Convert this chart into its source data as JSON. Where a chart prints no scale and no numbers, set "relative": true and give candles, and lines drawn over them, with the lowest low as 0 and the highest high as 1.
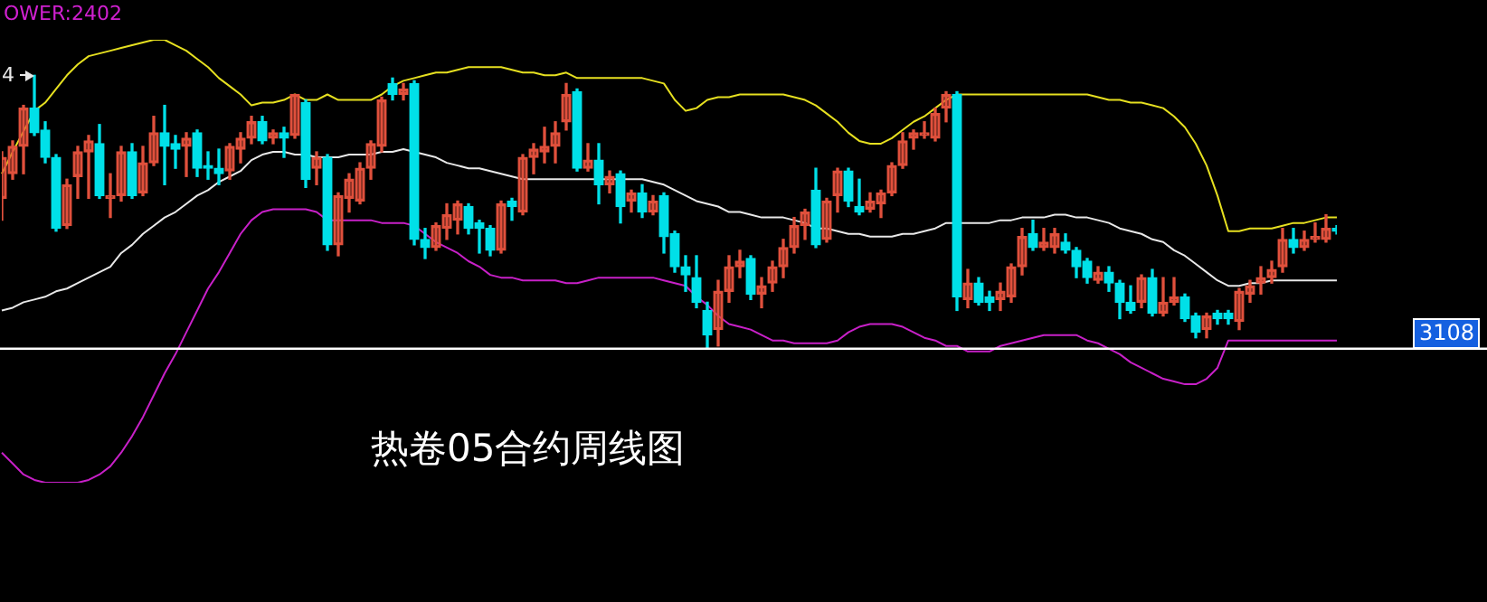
{
  "chart_data": {
    "type": "candlestick",
    "title": "热卷05合约周线图",
    "relative": true,
    "marker": "none",
    "annotations": [
      "OWER:2402",
      "4",
      "3108"
    ],
    "ref_lines": [
      {
        "axis": "y",
        "value": 0,
        "color": "#ffffff"
      }
    ],
    "categories": [
      null,
      null,
      null,
      null,
      null,
      null,
      null,
      null,
      null,
      null,
      null,
      null,
      null,
      null,
      null,
      null,
      null,
      null,
      null,
      null,
      null,
      null,
      null,
      null,
      null,
      null,
      null,
      null,
      null,
      null,
      null,
      null,
      null,
      null,
      null,
      null,
      null,
      null,
      null,
      null,
      null,
      null,
      null,
      null,
      null,
      null,
      null,
      null,
      null,
      null,
      null,
      null,
      null,
      null,
      null,
      null,
      null,
      null,
      null,
      null,
      null,
      null,
      null,
      null,
      null,
      null,
      null,
      null,
      null,
      null,
      null,
      null,
      null,
      null,
      null,
      null,
      null,
      null,
      null,
      null,
      null,
      null,
      null,
      null,
      null,
      null,
      null,
      null,
      null,
      null,
      null,
      null,
      null,
      null,
      null,
      null,
      null,
      null,
      null,
      null,
      null,
      null,
      null,
      null,
      null,
      null,
      null,
      null,
      null,
      null,
      null,
      null,
      null,
      null,
      null,
      null,
      null,
      null,
      null,
      null,
      null,
      null,
      null,
      null
    ],
    "ohlc": [
      [
        0.55,
        0.72,
        0.47,
        0.7
      ],
      [
        0.64,
        0.76,
        0.62,
        0.74
      ],
      [
        0.74,
        0.89,
        0.64,
        0.88
      ],
      [
        0.88,
        1,
        0.78,
        0.79
      ],
      [
        0.8,
        0.83,
        0.68,
        0.7
      ],
      [
        0.7,
        0.71,
        0.43,
        0.44
      ],
      [
        0.45,
        0.62,
        0.44,
        0.6
      ],
      [
        0.63,
        0.74,
        0.55,
        0.72
      ],
      [
        0.72,
        0.78,
        0.55,
        0.76
      ],
      [
        0.75,
        0.82,
        0.55,
        0.56
      ],
      [
        0.55,
        0.64,
        0.48,
        0.56
      ],
      [
        0.56,
        0.74,
        0.54,
        0.72
      ],
      [
        0.72,
        0.75,
        0.55,
        0.56
      ],
      [
        0.57,
        0.74,
        0.56,
        0.68
      ],
      [
        0.68,
        0.85,
        0.67,
        0.79
      ],
      [
        0.79,
        0.89,
        0.6,
        0.74
      ],
      [
        0.75,
        0.78,
        0.66,
        0.73
      ],
      [
        0.74,
        0.79,
        0.63,
        0.77
      ],
      [
        0.79,
        0.8,
        0.63,
        0.66
      ],
      [
        0.67,
        0.72,
        0.62,
        0.66
      ],
      [
        0.66,
        0.73,
        0.6,
        0.64
      ],
      [
        0.65,
        0.75,
        0.62,
        0.74
      ],
      [
        0.73,
        0.79,
        0.68,
        0.77
      ],
      [
        0.77,
        0.85,
        0.75,
        0.83
      ],
      [
        0.83,
        0.85,
        0.75,
        0.76
      ],
      [
        0.77,
        0.8,
        0.75,
        0.79
      ],
      [
        0.79,
        0.81,
        0.7,
        0.77
      ],
      [
        0.78,
        0.93,
        0.77,
        0.93
      ],
      [
        0.9,
        0.91,
        0.59,
        0.62
      ],
      [
        0.66,
        0.72,
        0.6,
        0.7
      ],
      [
        0.7,
        0.71,
        0.36,
        0.38
      ],
      [
        0.38,
        0.57,
        0.34,
        0.56
      ],
      [
        0.55,
        0.64,
        0.5,
        0.62
      ],
      [
        0.54,
        0.68,
        0.53,
        0.66
      ],
      [
        0.66,
        0.76,
        0.62,
        0.75
      ],
      [
        0.74,
        0.92,
        0.72,
        0.91
      ],
      [
        0.97,
        0.99,
        0.91,
        0.93
      ],
      [
        0.93,
        0.97,
        0.91,
        0.95
      ],
      [
        0.97,
        0.98,
        0.38,
        0.4
      ],
      [
        0.4,
        0.44,
        0.33,
        0.37
      ],
      [
        0.37,
        0.46,
        0.36,
        0.45
      ],
      [
        0.44,
        0.53,
        0.4,
        0.49
      ],
      [
        0.47,
        0.54,
        0.42,
        0.53
      ],
      [
        0.52,
        0.53,
        0.42,
        0.44
      ],
      [
        0.46,
        0.47,
        0.35,
        0.44
      ],
      [
        0.44,
        0.45,
        0.34,
        0.36
      ],
      [
        0.36,
        0.54,
        0.35,
        0.53
      ],
      [
        0.54,
        0.55,
        0.47,
        0.52
      ],
      [
        0.5,
        0.71,
        0.49,
        0.7
      ],
      [
        0.7,
        0.75,
        0.64,
        0.73
      ],
      [
        0.72,
        0.81,
        0.68,
        0.74
      ],
      [
        0.74,
        0.83,
        0.68,
        0.79
      ],
      [
        0.83,
        0.97,
        0.8,
        0.93
      ],
      [
        0.94,
        0.95,
        0.65,
        0.66
      ],
      [
        0.66,
        0.75,
        0.65,
        0.69
      ],
      [
        0.69,
        0.75,
        0.53,
        0.6
      ],
      [
        0.6,
        0.65,
        0.57,
        0.63
      ],
      [
        0.64,
        0.65,
        0.46,
        0.52
      ],
      [
        0.54,
        0.58,
        0.5,
        0.57
      ],
      [
        0.57,
        0.6,
        0.48,
        0.5
      ],
      [
        0.5,
        0.56,
        0.49,
        0.54
      ],
      [
        0.56,
        0.57,
        0.35,
        0.41
      ],
      [
        0.42,
        0.43,
        0.28,
        0.3
      ],
      [
        0.3,
        0.34,
        0.21,
        0.27
      ],
      [
        0.26,
        0.34,
        0.15,
        0.17
      ],
      [
        0.14,
        0.17,
        0,
        0.05
      ],
      [
        0.07,
        0.25,
        0.01,
        0.21
      ],
      [
        0.21,
        0.34,
        0.17,
        0.3
      ],
      [
        0.3,
        0.36,
        0.26,
        0.32
      ],
      [
        0.33,
        0.34,
        0.18,
        0.2
      ],
      [
        0.2,
        0.26,
        0.15,
        0.23
      ],
      [
        0.24,
        0.32,
        0.21,
        0.3
      ],
      [
        0.3,
        0.4,
        0.26,
        0.37
      ],
      [
        0.37,
        0.48,
        0.35,
        0.45
      ],
      [
        0.45,
        0.51,
        0.4,
        0.5
      ],
      [
        0.58,
        0.66,
        0.37,
        0.38
      ],
      [
        0.4,
        0.55,
        0.39,
        0.54
      ],
      [
        0.56,
        0.66,
        0.5,
        0.65
      ],
      [
        0.65,
        0.66,
        0.52,
        0.54
      ],
      [
        0.52,
        0.62,
        0.49,
        0.5
      ],
      [
        0.51,
        0.57,
        0.5,
        0.54
      ],
      [
        0.53,
        0.58,
        0.48,
        0.57
      ],
      [
        0.57,
        0.68,
        0.56,
        0.67
      ],
      [
        0.67,
        0.79,
        0.66,
        0.76
      ],
      [
        0.77,
        0.8,
        0.73,
        0.79
      ],
      [
        0.78,
        0.83,
        0.77,
        0.79
      ],
      [
        0.77,
        0.88,
        0.76,
        0.86
      ],
      [
        0.88,
        0.94,
        0.83,
        0.93
      ],
      [
        0.93,
        0.94,
        0.14,
        0.19
      ],
      [
        0.18,
        0.29,
        0.15,
        0.24
      ],
      [
        0.24,
        0.26,
        0.16,
        0.17
      ],
      [
        0.19,
        0.21,
        0.14,
        0.17
      ],
      [
        0.18,
        0.24,
        0.14,
        0.21
      ],
      [
        0.19,
        0.31,
        0.17,
        0.3
      ],
      [
        0.3,
        0.44,
        0.27,
        0.41
      ],
      [
        0.42,
        0.47,
        0.36,
        0.37
      ],
      [
        0.37,
        0.44,
        0.36,
        0.39
      ],
      [
        0.37,
        0.44,
        0.35,
        0.42
      ],
      [
        0.39,
        0.42,
        0.35,
        0.36
      ],
      [
        0.36,
        0.37,
        0.26,
        0.3
      ],
      [
        0.32,
        0.33,
        0.24,
        0.26
      ],
      [
        0.25,
        0.3,
        0.24,
        0.28
      ],
      [
        0.28,
        0.3,
        0.21,
        0.24
      ],
      [
        0.24,
        0.25,
        0.11,
        0.17
      ],
      [
        0.17,
        0.23,
        0.13,
        0.14
      ],
      [
        0.17,
        0.27,
        0.15,
        0.26
      ],
      [
        0.26,
        0.29,
        0.12,
        0.13
      ],
      [
        0.13,
        0.26,
        0.12,
        0.17
      ],
      [
        0.17,
        0.26,
        0.16,
        0.19
      ],
      [
        0.19,
        0.2,
        0.1,
        0.11
      ],
      [
        0.12,
        0.13,
        0.04,
        0.06
      ],
      [
        0.07,
        0.13,
        0.04,
        0.12
      ],
      [
        0.13,
        0.14,
        0.09,
        0.11
      ],
      [
        0.13,
        0.14,
        0.09,
        0.11
      ],
      [
        0.1,
        0.22,
        0.07,
        0.21
      ],
      [
        0.2,
        0.25,
        0.17,
        0.23
      ],
      [
        0.24,
        0.3,
        0.2,
        0.26
      ],
      [
        0.26,
        0.32,
        0.24,
        0.29
      ],
      [
        0.3,
        0.44,
        0.28,
        0.4
      ],
      [
        0.4,
        0.44,
        0.35,
        0.37
      ],
      [
        0.37,
        0.43,
        0.36,
        0.4
      ],
      [
        0.4,
        0.46,
        0.39,
        0.41
      ],
      [
        0.4,
        0.49,
        0.39,
        0.44
      ],
      [
        0.44,
        0.45,
        0.42,
        0.43
      ]
    ],
    "colors": [
      "#e0503c",
      "#e0503c",
      "#e0503c",
      "#00e0e8",
      "#00e0e8",
      "#00e0e8",
      "#e0503c",
      "#e0503c",
      "#e0503c",
      "#00e0e8",
      "#e0503c",
      "#e0503c",
      "#00e0e8",
      "#e0503c",
      "#e0503c",
      "#00e0e8",
      "#00e0e8",
      "#e0503c",
      "#00e0e8",
      "#00e0e8",
      "#00e0e8",
      "#e0503c",
      "#e0503c",
      "#e0503c",
      "#00e0e8",
      "#e0503c",
      "#00e0e8",
      "#e0503c",
      "#00e0e8",
      "#e0503c",
      "#00e0e8",
      "#e0503c",
      "#e0503c",
      "#e0503c",
      "#e0503c",
      "#e0503c",
      "#00e0e8",
      "#e0503c",
      "#00e0e8",
      "#00e0e8",
      "#e0503c",
      "#e0503c",
      "#e0503c",
      "#00e0e8",
      "#00e0e8",
      "#00e0e8",
      "#e0503c",
      "#00e0e8",
      "#e0503c",
      "#e0503c",
      "#e0503c",
      "#e0503c",
      "#e0503c",
      "#00e0e8",
      "#e0503c",
      "#00e0e8",
      "#e0503c",
      "#00e0e8",
      "#e0503c",
      "#00e0e8",
      "#e0503c",
      "#00e0e8",
      "#00e0e8",
      "#00e0e8",
      "#00e0e8",
      "#00e0e8",
      "#e0503c",
      "#e0503c",
      "#e0503c",
      "#00e0e8",
      "#e0503c",
      "#e0503c",
      "#e0503c",
      "#e0503c",
      "#e0503c",
      "#00e0e8",
      "#e0503c",
      "#e0503c",
      "#00e0e8",
      "#00e0e8",
      "#e0503c",
      "#e0503c",
      "#e0503c",
      "#e0503c",
      "#e0503c",
      "#e0503c",
      "#e0503c",
      "#e0503c",
      "#00e0e8",
      "#e0503c",
      "#00e0e8",
      "#00e0e8",
      "#e0503c",
      "#e0503c",
      "#e0503c",
      "#00e0e8",
      "#e0503c",
      "#e0503c",
      "#00e0e8",
      "#00e0e8",
      "#00e0e8",
      "#e0503c",
      "#00e0e8",
      "#00e0e8",
      "#00e0e8",
      "#e0503c",
      "#00e0e8",
      "#e0503c",
      "#e0503c",
      "#00e0e8",
      "#00e0e8",
      "#e0503c",
      "#00e0e8",
      "#00e0e8",
      "#e0503c",
      "#e0503c",
      "#e0503c",
      "#e0503c",
      "#e0503c",
      "#00e0e8",
      "#e0503c",
      "#e0503c",
      "#e0503c",
      "#00e0e8"
    ],
    "series": [
      {
        "type": "line",
        "color": "#e6e020",
        "values": [
          0.64,
          0.72,
          null,
          0.87,
          0.9,
          0.95,
          1.0,
          1.04,
          1.07,
          1.08,
          1.09,
          1.1,
          1.11,
          1.12,
          1.13,
          1.13,
          1.11,
          1.09,
          1.06,
          1.03,
          0.99,
          0.96,
          0.93,
          0.89,
          0.9,
          0.9,
          0.91,
          0.93,
          0.91,
          0.91,
          0.93,
          0.91,
          0.91,
          0.91,
          0.91,
          0.93,
          0.96,
          0.98,
          0.99,
          1.0,
          1.01,
          1.01,
          1.02,
          1.03,
          1.03,
          1.03,
          1.03,
          1.02,
          1.01,
          1.01,
          1.0,
          1.0,
          1.01,
          0.99,
          0.99,
          0.99,
          0.99,
          0.99,
          0.99,
          0.99,
          0.98,
          0.97,
          0.91,
          0.87,
          0.88,
          0.91,
          0.92,
          0.92,
          0.93,
          0.93,
          0.93,
          0.93,
          0.93,
          0.92,
          0.91,
          0.89,
          0.86,
          0.83,
          0.79,
          0.76,
          0.75,
          0.75,
          0.77,
          0.8,
          0.83,
          0.85,
          0.88,
          0.91,
          0.93,
          0.93,
          0.93,
          0.93,
          0.93,
          0.93,
          0.93,
          0.93,
          0.93,
          0.93,
          0.93,
          0.93,
          0.93,
          0.92,
          0.91,
          0.91,
          0.9,
          0.9,
          0.89,
          0.88,
          0.85,
          0.81,
          0.75,
          0.67,
          0.56,
          0.43,
          0.43,
          0.44,
          0.44,
          0.44,
          0.45,
          0.46,
          0.46,
          0.47,
          0.48,
          0.48
        ]
      },
      {
        "type": "line",
        "color": "#e8e8e8",
        "values": [
          0.14,
          0.15,
          0.17,
          0.18,
          0.19,
          0.21,
          0.22,
          0.24,
          0.26,
          0.28,
          0.3,
          0.35,
          0.38,
          0.42,
          0.45,
          0.48,
          0.5,
          0.53,
          0.56,
          0.58,
          0.61,
          0.63,
          0.65,
          0.69,
          0.71,
          0.72,
          0.72,
          0.71,
          0.71,
          0.7,
          0.7,
          0.7,
          0.71,
          0.71,
          0.71,
          0.72,
          0.72,
          0.73,
          0.72,
          0.71,
          0.7,
          0.68,
          0.67,
          0.66,
          0.66,
          0.65,
          0.64,
          0.63,
          0.62,
          0.62,
          0.62,
          0.62,
          0.62,
          0.62,
          0.62,
          0.62,
          0.62,
          0.62,
          0.62,
          0.62,
          0.61,
          0.6,
          0.58,
          0.56,
          0.54,
          0.53,
          0.52,
          0.5,
          0.5,
          0.49,
          0.48,
          0.48,
          0.48,
          0.47,
          0.46,
          0.44,
          0.44,
          0.43,
          0.42,
          0.42,
          0.41,
          0.41,
          0.41,
          0.42,
          0.42,
          0.43,
          0.44,
          0.46,
          0.46,
          0.46,
          0.46,
          0.46,
          0.47,
          0.47,
          0.48,
          0.48,
          0.48,
          0.49,
          0.49,
          0.48,
          0.48,
          0.47,
          0.46,
          0.44,
          0.43,
          0.42,
          0.4,
          0.39,
          0.36,
          0.34,
          0.31,
          0.28,
          0.25,
          0.23,
          0.23,
          0.24,
          0.24,
          0.25,
          0.25,
          0.25,
          0.25,
          0.25,
          0.25,
          0.25
        ]
      },
      {
        "type": "line",
        "color": "#c820c8",
        "values": [
          -0.38,
          -0.42,
          -0.46,
          -0.48,
          -0.49,
          -0.49,
          -0.49,
          -0.49,
          -0.48,
          -0.46,
          -0.43,
          -0.38,
          -0.32,
          -0.25,
          -0.17,
          -0.09,
          -0.02,
          0.06,
          0.14,
          0.22,
          0.28,
          0.35,
          0.42,
          0.47,
          0.5,
          0.51,
          0.51,
          0.51,
          0.51,
          0.5,
          0.47,
          0.47,
          0.47,
          0.47,
          0.47,
          0.46,
          0.46,
          0.46,
          0.45,
          0.42,
          0.39,
          0.37,
          0.35,
          0.32,
          0.3,
          0.27,
          0.26,
          0.26,
          0.25,
          0.25,
          0.25,
          0.25,
          0.24,
          0.24,
          0.25,
          0.26,
          0.26,
          0.26,
          0.26,
          0.26,
          0.26,
          0.25,
          0.24,
          0.23,
          0.19,
          0.16,
          0.12,
          0.09,
          0.08,
          0.07,
          0.05,
          0.03,
          0.03,
          0.02,
          0.02,
          0.02,
          0.02,
          0.03,
          0.06,
          0.08,
          0.09,
          0.09,
          0.09,
          0.08,
          0.06,
          0.04,
          0.03,
          0.01,
          0.01,
          -0.01,
          -0.01,
          -0.01,
          0.01,
          0.02,
          0.03,
          0.04,
          0.05,
          0.05,
          0.05,
          0.05,
          0.03,
          0.02,
          0,
          -0.02,
          -0.05,
          -0.07,
          -0.09,
          -0.11,
          -0.12,
          -0.13,
          -0.13,
          -0.11,
          -0.07,
          0.03,
          0.03,
          0.03,
          0.03,
          0.03,
          0.03,
          0.03,
          0.03,
          0.03,
          0.03,
          0.03
        ]
      }
    ]
  }
}
